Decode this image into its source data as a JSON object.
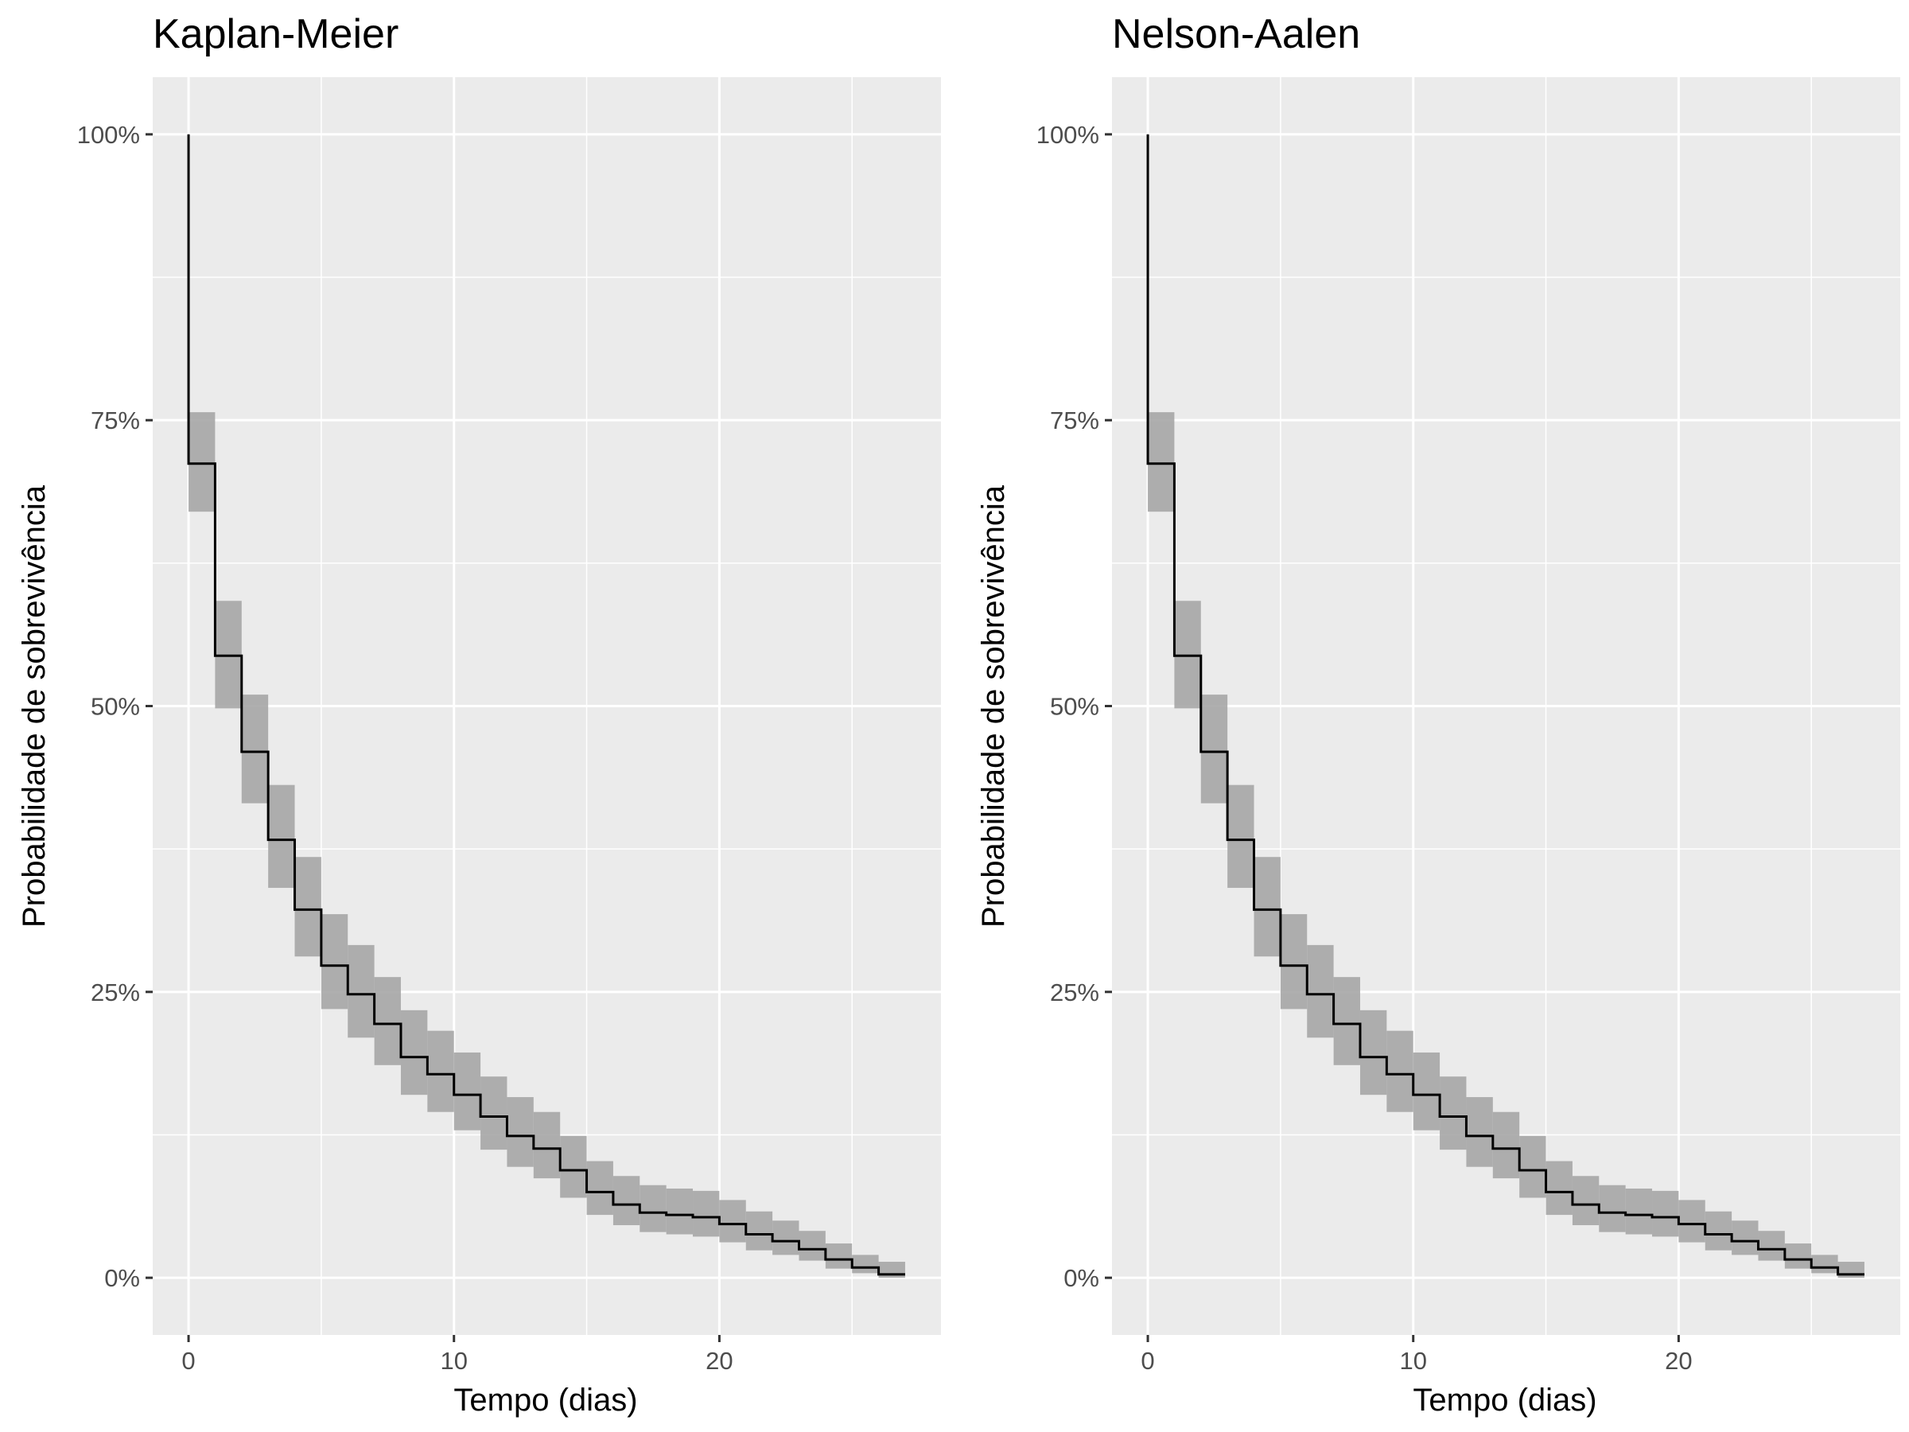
{
  "chart_data": [
    {
      "type": "line",
      "title": "Kaplan-Meier",
      "xlabel": "Tempo (dias)",
      "ylabel": "Probabilidade de sobrevivência",
      "xlim": [
        -1.35,
        28.35
      ],
      "ylim": [
        -0.05,
        1.05
      ],
      "x_ticks": [
        0,
        10,
        20
      ],
      "x_tick_labels": [
        "0",
        "10",
        "20"
      ],
      "y_ticks": [
        0,
        0.25,
        0.5,
        0.75,
        1.0
      ],
      "y_tick_labels": [
        "0%",
        "25%",
        "50%",
        "75%",
        "100%"
      ],
      "grid": true,
      "series": [
        {
          "step": "post",
          "x": [
            0,
            1,
            2,
            3,
            4,
            5,
            6,
            7,
            8,
            9,
            10,
            11,
            12,
            13,
            14,
            15,
            16,
            17,
            18,
            19,
            20,
            21,
            22,
            23,
            24,
            25,
            26,
            27
          ],
          "estimate": [
            0.712,
            0.544,
            0.46,
            0.383,
            0.322,
            0.273,
            0.248,
            0.222,
            0.193,
            0.178,
            0.16,
            0.141,
            0.124,
            0.113,
            0.094,
            0.075,
            0.064,
            0.057,
            0.055,
            0.053,
            0.047,
            0.038,
            0.032,
            0.025,
            0.016,
            0.009,
            0.003,
            0.003
          ],
          "lower": [
            0.67,
            0.498,
            0.415,
            0.341,
            0.281,
            0.235,
            0.21,
            0.186,
            0.16,
            0.145,
            0.129,
            0.112,
            0.097,
            0.087,
            0.07,
            0.055,
            0.046,
            0.04,
            0.038,
            0.036,
            0.031,
            0.024,
            0.02,
            0.015,
            0.008,
            0.004,
            0.0,
            0.0
          ],
          "upper": [
            0.757,
            0.592,
            0.51,
            0.431,
            0.368,
            0.318,
            0.291,
            0.263,
            0.234,
            0.216,
            0.197,
            0.176,
            0.158,
            0.145,
            0.124,
            0.102,
            0.089,
            0.081,
            0.078,
            0.076,
            0.068,
            0.058,
            0.05,
            0.041,
            0.03,
            0.02,
            0.014,
            0.014
          ]
        }
      ],
      "colors": {
        "panel": "#ebebeb",
        "grid": "#ffffff",
        "line": "#000000",
        "band": "#a6a6a6"
      }
    },
    {
      "type": "line",
      "title": "Nelson-Aalen",
      "xlabel": "Tempo (dias)",
      "ylabel": "Probabilidade de sobrevivência",
      "xlim": [
        -1.35,
        28.35
      ],
      "ylim": [
        -0.05,
        1.05
      ],
      "x_ticks": [
        0,
        10,
        20
      ],
      "x_tick_labels": [
        "0",
        "10",
        "20"
      ],
      "y_ticks": [
        0,
        0.25,
        0.5,
        0.75,
        1.0
      ],
      "y_tick_labels": [
        "0%",
        "25%",
        "50%",
        "75%",
        "100%"
      ],
      "grid": true,
      "series": [
        {
          "step": "post",
          "x": [
            0,
            1,
            2,
            3,
            4,
            5,
            6,
            7,
            8,
            9,
            10,
            11,
            12,
            13,
            14,
            15,
            16,
            17,
            18,
            19,
            20,
            21,
            22,
            23,
            24,
            25,
            26,
            27
          ],
          "estimate": [
            0.712,
            0.544,
            0.46,
            0.383,
            0.322,
            0.273,
            0.248,
            0.222,
            0.193,
            0.178,
            0.16,
            0.141,
            0.124,
            0.113,
            0.094,
            0.075,
            0.064,
            0.057,
            0.055,
            0.053,
            0.047,
            0.038,
            0.032,
            0.025,
            0.016,
            0.009,
            0.003,
            0.003
          ],
          "lower": [
            0.67,
            0.498,
            0.415,
            0.341,
            0.281,
            0.235,
            0.21,
            0.186,
            0.16,
            0.145,
            0.129,
            0.112,
            0.097,
            0.087,
            0.07,
            0.055,
            0.046,
            0.04,
            0.038,
            0.036,
            0.031,
            0.024,
            0.02,
            0.015,
            0.008,
            0.004,
            0.0,
            0.0
          ],
          "upper": [
            0.757,
            0.592,
            0.51,
            0.431,
            0.368,
            0.318,
            0.291,
            0.263,
            0.234,
            0.216,
            0.197,
            0.176,
            0.158,
            0.145,
            0.124,
            0.102,
            0.089,
            0.081,
            0.078,
            0.076,
            0.068,
            0.058,
            0.05,
            0.041,
            0.03,
            0.02,
            0.014,
            0.014
          ]
        }
      ],
      "colors": {
        "panel": "#ebebeb",
        "grid": "#ffffff",
        "line": "#000000",
        "band": "#a6a6a6"
      }
    }
  ]
}
